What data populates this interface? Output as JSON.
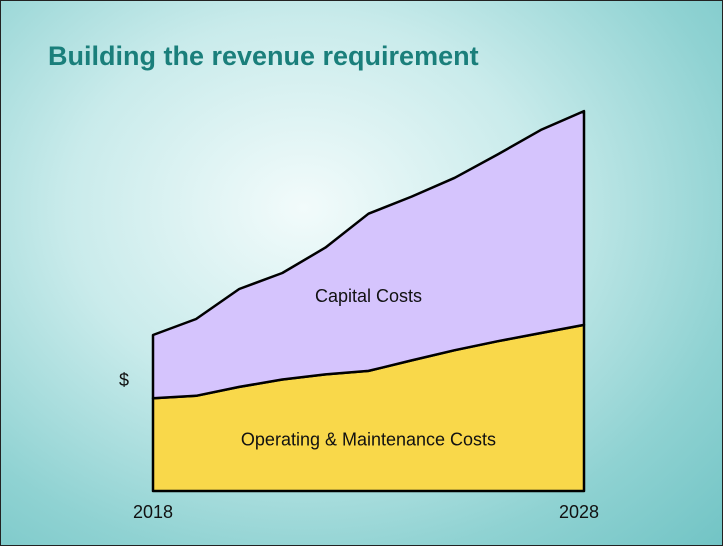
{
  "chart_data": {
    "type": "stacked_area",
    "title": "Building the revenue requirement",
    "y_label": "$",
    "categories": [
      "2018",
      null,
      null,
      null,
      null,
      null,
      null,
      null,
      null,
      null,
      "2028"
    ],
    "ylim": [
      0,
      100
    ],
    "series": [
      {
        "name": "Operating & Maintenance Costs",
        "color": "#f9d84a",
        "values": [
          23.8,
          24.4,
          26.7,
          28.6,
          29.9,
          30.8,
          33.5,
          36.1,
          38.4,
          40.5,
          42.6
        ]
      },
      {
        "name": "Capital Costs",
        "color": "#d5c4fd",
        "values": [
          16.2,
          19.7,
          25.1,
          27.3,
          32.5,
          40.3,
          42.0,
          44.2,
          47.9,
          52.1,
          54.8
        ]
      }
    ]
  }
}
